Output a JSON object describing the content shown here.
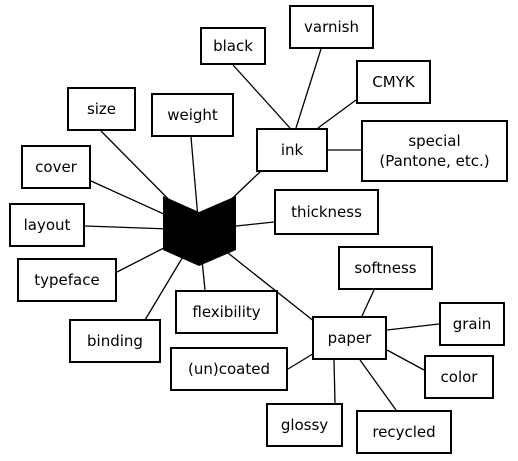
{
  "diagram": {
    "center": {
      "name": "book-icon"
    },
    "nodes": [
      {
        "id": "black",
        "label": "black"
      },
      {
        "id": "varnish",
        "label": "varnish"
      },
      {
        "id": "cmyk",
        "label": "CMYK"
      },
      {
        "id": "size",
        "label": "size"
      },
      {
        "id": "weight",
        "label": "weight"
      },
      {
        "id": "ink",
        "label": "ink"
      },
      {
        "id": "special",
        "label": "special\n(Pantone, etc.)"
      },
      {
        "id": "cover",
        "label": "cover"
      },
      {
        "id": "layout",
        "label": "layout"
      },
      {
        "id": "thickness",
        "label": "thickness"
      },
      {
        "id": "softness",
        "label": "softness"
      },
      {
        "id": "typeface",
        "label": "typeface"
      },
      {
        "id": "flexibility",
        "label": "flexibility"
      },
      {
        "id": "grain",
        "label": "grain"
      },
      {
        "id": "binding",
        "label": "binding"
      },
      {
        "id": "paper",
        "label": "paper"
      },
      {
        "id": "uncoated",
        "label": "(un)coated"
      },
      {
        "id": "color",
        "label": "color"
      },
      {
        "id": "glossy",
        "label": "glossy"
      },
      {
        "id": "recycled",
        "label": "recycled"
      }
    ],
    "edges": [
      [
        "center",
        "size"
      ],
      [
        "center",
        "weight"
      ],
      [
        "center",
        "ink"
      ],
      [
        "center",
        "cover"
      ],
      [
        "center",
        "layout"
      ],
      [
        "center",
        "thickness"
      ],
      [
        "center",
        "typeface"
      ],
      [
        "center",
        "flexibility"
      ],
      [
        "center",
        "binding"
      ],
      [
        "center",
        "paper"
      ],
      [
        "ink",
        "black"
      ],
      [
        "ink",
        "varnish"
      ],
      [
        "ink",
        "cmyk"
      ],
      [
        "ink",
        "special"
      ],
      [
        "paper",
        "softness"
      ],
      [
        "paper",
        "grain"
      ],
      [
        "paper",
        "uncoated"
      ],
      [
        "paper",
        "color"
      ],
      [
        "paper",
        "glossy"
      ],
      [
        "paper",
        "recycled"
      ]
    ]
  }
}
